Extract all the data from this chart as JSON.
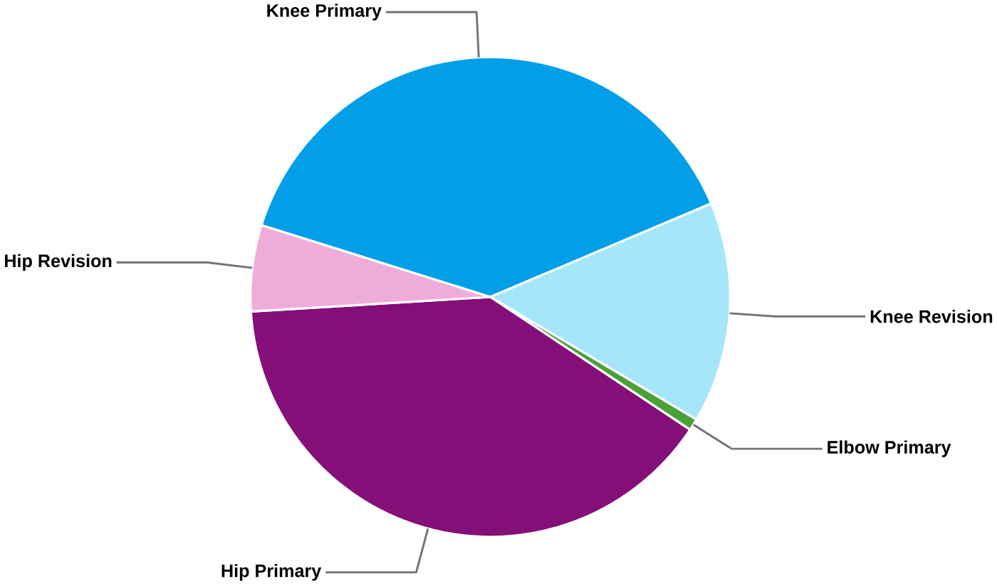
{
  "chart_data": {
    "type": "pie",
    "categories": [
      "Knee Primary",
      "Knee Revision",
      "Elbow Primary",
      "Hip Primary",
      "Hip Revision"
    ],
    "values": [
      38.8,
      14.9,
      0.8,
      39.7,
      5.8
    ],
    "colors": [
      "#009fe8",
      "#a6e6fb",
      "#4ca038",
      "#850f78",
      "#f0acd8"
    ]
  }
}
